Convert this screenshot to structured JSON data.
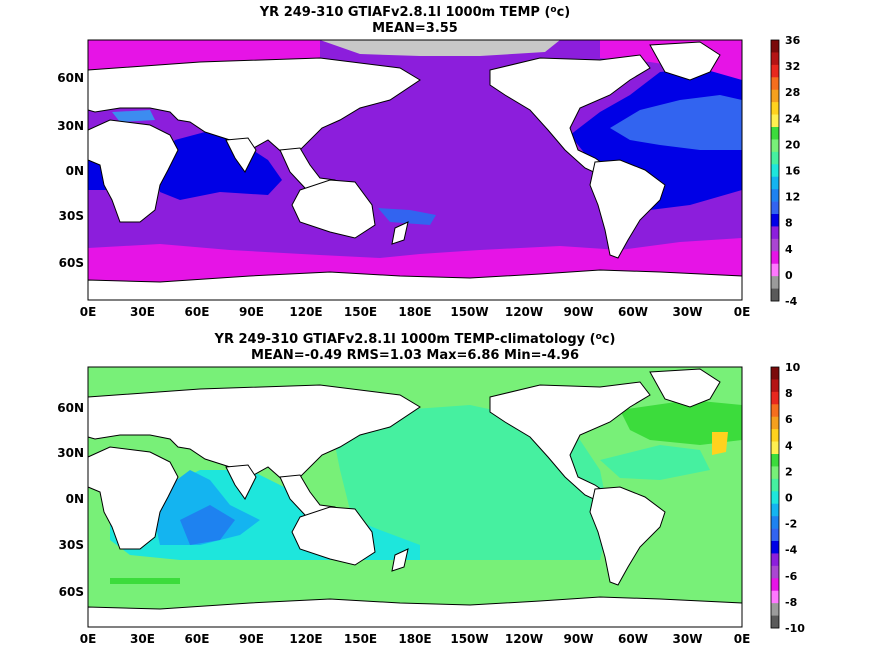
{
  "panels": [
    {
      "title1": "YR 249-310 GTIAFv2.8.1l 1000m TEMP (",
      "title1_sup": "o",
      "title1_end": "c)",
      "title2": "MEAN=3.55",
      "lat_labels": [
        "60N",
        "30N",
        "0N",
        "30S",
        "60S"
      ],
      "lon_labels": [
        "0E",
        "30E",
        "60E",
        "90E",
        "120E",
        "150E",
        "180E",
        "150W",
        "120W",
        "90W",
        "60W",
        "30W",
        "0E"
      ],
      "colorbar": {
        "labels": [
          "36",
          "32",
          "28",
          "24",
          "20",
          "16",
          "12",
          "8",
          "4",
          "0",
          "-4"
        ],
        "colors": [
          "#7a0a0a",
          "#b41414",
          "#e8281e",
          "#f56e1e",
          "#f5a01e",
          "#ffd21e",
          "#fff050",
          "#3cdc3c",
          "#78f078",
          "#46f0a0",
          "#1ee6dc",
          "#14b4f0",
          "#1e82f0",
          "#3264f0",
          "#0000e6",
          "#8c1edc",
          "#aa46d2",
          "#e614e6",
          "#ff78ff",
          "#9b9b9b",
          "#5a5a5a"
        ]
      }
    },
    {
      "title1": "YR 249-310 GTIAFv2.8.1l 1000m TEMP-climatology (",
      "title1_sup": "o",
      "title1_end": "c)",
      "title2": "MEAN=-0.49   RMS=1.03   Max=6.86   Min=-4.96",
      "lat_labels": [
        "60N",
        "30N",
        "0N",
        "30S",
        "60S"
      ],
      "lon_labels": [
        "0E",
        "30E",
        "60E",
        "90E",
        "120E",
        "150E",
        "180E",
        "150W",
        "120W",
        "90W",
        "60W",
        "30W",
        "0E"
      ],
      "colorbar": {
        "labels": [
          "10",
          "8",
          "6",
          "4",
          "2",
          "0",
          "-2",
          "-4",
          "-6",
          "-8",
          "-10"
        ],
        "colors": [
          "#7a0a0a",
          "#b41414",
          "#e8281e",
          "#f56e1e",
          "#f5a01e",
          "#ffd21e",
          "#fff050",
          "#3cdc3c",
          "#78f078",
          "#46f0a0",
          "#1ee6dc",
          "#14b4f0",
          "#1e82f0",
          "#3264f0",
          "#0000e6",
          "#8c1edc",
          "#aa46d2",
          "#e614e6",
          "#ff78ff",
          "#9b9b9b",
          "#5a5a5a"
        ]
      }
    }
  ],
  "colors": {
    "land": "#ffffff",
    "coast": "#000000",
    "ice": "#c8c8c8",
    "t_magenta": "#e614e6",
    "t_purple": "#8c1edc",
    "t_blue": "#0000e6",
    "t_midblue": "#3264f0",
    "t_lightblue": "#3c8cf0",
    "a_green": "#3cdc3c",
    "a_lightgreen": "#78f078",
    "a_mint": "#46f0a0",
    "a_cyan": "#1ee6dc",
    "a_sky": "#14b4f0",
    "a_blue": "#1e82f0",
    "a_yellow": "#ffd21e"
  }
}
